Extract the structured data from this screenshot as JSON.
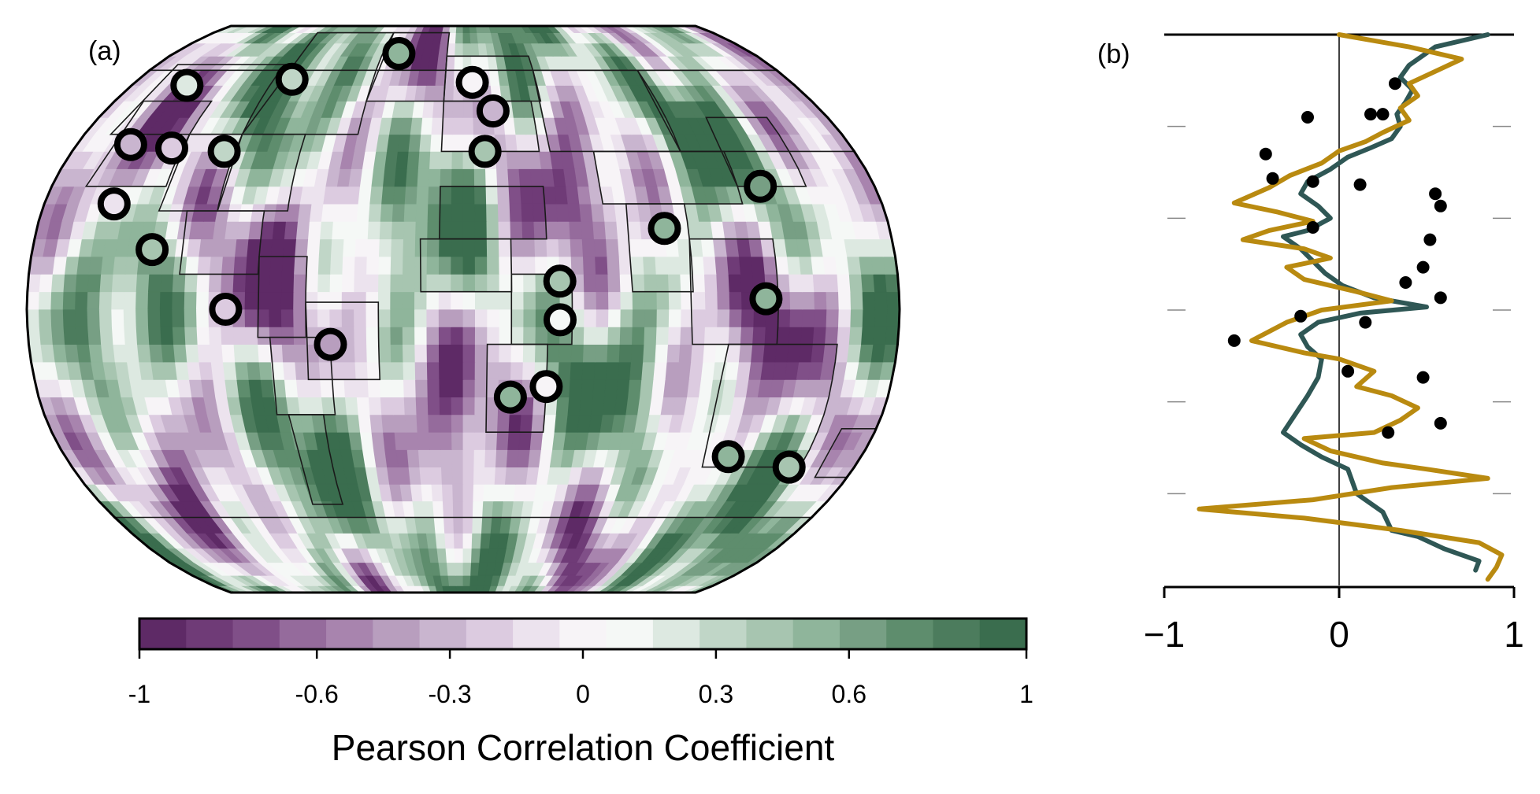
{
  "panel_a_label": "(a)",
  "panel_b_label": "(b)",
  "colorbar": {
    "title": "Pearson Correlation Coefficient",
    "min": -1,
    "max": 1,
    "ticks": [
      -1,
      -0.6,
      -0.3,
      0,
      0.3,
      0.6,
      1
    ],
    "tick_labels": [
      "-1",
      "-0.6",
      "-0.3",
      "0",
      "0.3",
      "0.6",
      "1"
    ],
    "colors": [
      "#5e2a66",
      "#6f3b77",
      "#804f88",
      "#956b9c",
      "#a884ae",
      "#b89ebe",
      "#c9b5cf",
      "#dccbe0",
      "#ece3ee",
      "#f7f4f7",
      "#f5f8f6",
      "#dde9e1",
      "#c0d6c7",
      "#a7c5b0",
      "#8fb59b",
      "#779f84",
      "#5e8d6d",
      "#4c7c5d",
      "#3a6d4e"
    ]
  },
  "chart_data": [
    {
      "type": "heatmap",
      "panel": "(a)",
      "projection": "Robinson",
      "region_markers": [
        {
          "lon": -150,
          "lat": 65,
          "r": 0.2
        },
        {
          "lon": -95,
          "lat": 67,
          "r": 0.3
        },
        {
          "lon": -40,
          "lat": 76,
          "r": 0.5
        },
        {
          "lon": -155,
          "lat": 47,
          "r": -0.3
        },
        {
          "lon": -135,
          "lat": 46,
          "r": -0.2
        },
        {
          "lon": -110,
          "lat": 45,
          "r": 0.3
        },
        {
          "lon": -150,
          "lat": 30,
          "r": -0.1
        },
        {
          "lon": -130,
          "lat": 17,
          "r": 0.4
        },
        {
          "lon": -98,
          "lat": 0,
          "r": -0.2
        },
        {
          "lon": -55,
          "lat": -10,
          "r": -0.4
        },
        {
          "lon": 5,
          "lat": 66,
          "r": 0.0
        },
        {
          "lon": 15,
          "lat": 57,
          "r": -0.3
        },
        {
          "lon": 10,
          "lat": 45,
          "r": 0.4
        },
        {
          "lon": 40,
          "lat": 8,
          "r": 0.4
        },
        {
          "lon": 40,
          "lat": -3,
          "r": 0.1
        },
        {
          "lon": 20,
          "lat": -25,
          "r": 0.5
        },
        {
          "lon": 35,
          "lat": -22,
          "r": 0.0
        },
        {
          "lon": 85,
          "lat": 23,
          "r": 0.5
        },
        {
          "lon": 130,
          "lat": 35,
          "r": 0.6
        },
        {
          "lon": 125,
          "lat": 3,
          "r": 0.5
        },
        {
          "lon": 120,
          "lat": -42,
          "r": 0.5
        },
        {
          "lon": 150,
          "lat": -45,
          "r": 0.4
        }
      ]
    },
    {
      "type": "line",
      "panel": "(b)",
      "orientation": "vertical",
      "xlim": [
        -1,
        1
      ],
      "xticks": [
        -1,
        0,
        1
      ],
      "xtick_labels": [
        "−1",
        "0",
        "1"
      ],
      "ylim": [
        -90,
        90
      ],
      "y_minor_ticks": [
        -60,
        -30,
        0,
        30,
        60
      ],
      "series": [
        {
          "color": "#2f5755",
          "points": [
            [
              0.85,
              90
            ],
            [
              0.55,
              86
            ],
            [
              0.4,
              80
            ],
            [
              0.35,
              76
            ],
            [
              0.42,
              72
            ],
            [
              0.38,
              68
            ],
            [
              0.33,
              64
            ],
            [
              0.35,
              60
            ],
            [
              0.3,
              56
            ],
            [
              0.18,
              53
            ],
            [
              0.05,
              50
            ],
            [
              -0.05,
              46
            ],
            [
              -0.18,
              42
            ],
            [
              -0.22,
              38
            ],
            [
              -0.12,
              34
            ],
            [
              -0.05,
              30
            ],
            [
              -0.18,
              26
            ],
            [
              -0.32,
              24
            ],
            [
              -0.22,
              20
            ],
            [
              -0.15,
              16
            ],
            [
              -0.08,
              12
            ],
            [
              0.02,
              8
            ],
            [
              0.2,
              4
            ],
            [
              0.5,
              1
            ],
            [
              0.12,
              -1
            ],
            [
              -0.12,
              -4
            ],
            [
              -0.22,
              -8
            ],
            [
              -0.18,
              -12
            ],
            [
              -0.1,
              -16
            ],
            [
              -0.12,
              -22
            ],
            [
              -0.18,
              -28
            ],
            [
              -0.32,
              -40
            ],
            [
              -0.22,
              -44
            ],
            [
              -0.1,
              -48
            ],
            [
              0.05,
              -52
            ],
            [
              0.1,
              -60
            ],
            [
              0.25,
              -66
            ],
            [
              0.3,
              -72
            ],
            [
              0.45,
              -74
            ],
            [
              0.6,
              -78
            ],
            [
              0.8,
              -82
            ],
            [
              0.78,
              -85
            ]
          ]
        },
        {
          "color": "#b98a10",
          "points": [
            [
              0.0,
              90
            ],
            [
              0.4,
              86
            ],
            [
              0.7,
              82
            ],
            [
              0.55,
              78
            ],
            [
              0.4,
              74
            ],
            [
              0.45,
              70
            ],
            [
              0.35,
              66
            ],
            [
              0.4,
              62
            ],
            [
              0.25,
              58
            ],
            [
              0.15,
              55
            ],
            [
              0.0,
              52
            ],
            [
              -0.1,
              48
            ],
            [
              -0.28,
              44
            ],
            [
              -0.4,
              40
            ],
            [
              -0.6,
              35
            ],
            [
              -0.35,
              32
            ],
            [
              -0.15,
              29
            ],
            [
              -0.4,
              26
            ],
            [
              -0.55,
              23
            ],
            [
              -0.2,
              20
            ],
            [
              -0.05,
              17
            ],
            [
              -0.3,
              14
            ],
            [
              -0.2,
              10
            ],
            [
              0.1,
              6
            ],
            [
              0.3,
              3
            ],
            [
              -0.1,
              0
            ],
            [
              -0.3,
              -4
            ],
            [
              -0.5,
              -10
            ],
            [
              -0.2,
              -14
            ],
            [
              0.0,
              -16
            ],
            [
              0.2,
              -20
            ],
            [
              0.1,
              -25
            ],
            [
              0.3,
              -28
            ],
            [
              0.45,
              -32
            ],
            [
              0.35,
              -36
            ],
            [
              0.2,
              -40
            ],
            [
              -0.2,
              -42
            ],
            [
              -0.05,
              -46
            ],
            [
              0.25,
              -50
            ],
            [
              0.5,
              -52
            ],
            [
              0.85,
              -55
            ],
            [
              0.3,
              -58
            ],
            [
              -0.15,
              -62
            ],
            [
              -0.8,
              -65
            ],
            [
              -0.2,
              -68
            ],
            [
              0.35,
              -72
            ],
            [
              0.8,
              -76
            ],
            [
              0.93,
              -80
            ],
            [
              0.9,
              -84
            ],
            [
              0.85,
              -88
            ]
          ]
        }
      ],
      "scatter_points": [
        [
          0.32,
          74
        ],
        [
          -0.18,
          63
        ],
        [
          0.18,
          64
        ],
        [
          0.25,
          64
        ],
        [
          -0.42,
          51
        ],
        [
          -0.38,
          43
        ],
        [
          -0.15,
          42
        ],
        [
          0.12,
          41
        ],
        [
          0.55,
          38
        ],
        [
          0.58,
          34
        ],
        [
          -0.15,
          27
        ],
        [
          0.52,
          23
        ],
        [
          0.48,
          14
        ],
        [
          0.38,
          9
        ],
        [
          0.58,
          4
        ],
        [
          -0.22,
          -2
        ],
        [
          0.15,
          -4
        ],
        [
          -0.6,
          -10
        ],
        [
          0.05,
          -20
        ],
        [
          0.48,
          -22
        ],
        [
          0.28,
          -40
        ],
        [
          0.58,
          -37
        ]
      ]
    }
  ]
}
